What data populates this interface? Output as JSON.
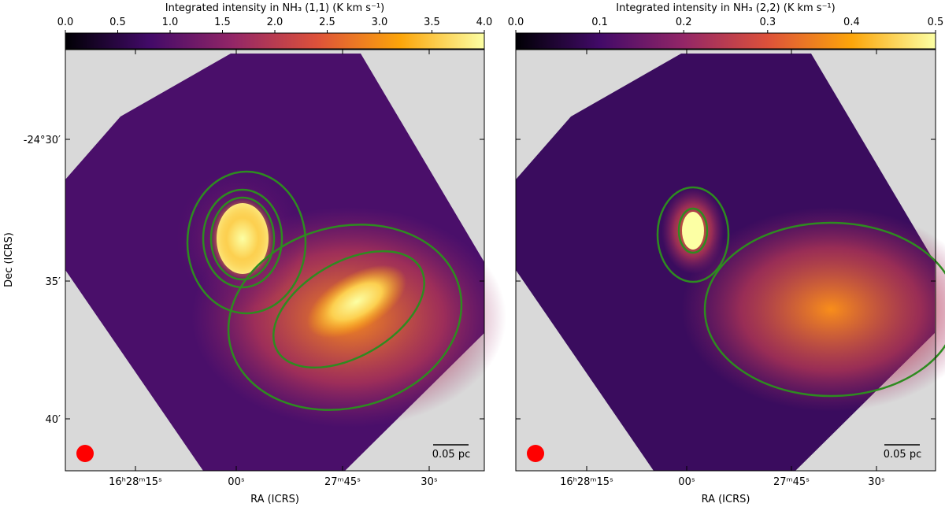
{
  "chart_data": [
    {
      "type": "heatmap",
      "colormap": "inferno",
      "colorbar_label": "Integrated intensity in NH₃ (1,1) (K km s⁻¹)",
      "clim": [
        0,
        4
      ],
      "cticks": [
        {
          "value": 0,
          "label": "0.0"
        },
        0.5,
        {
          "value": 1,
          "label": "1.0"
        },
        1.5,
        {
          "value": 2,
          "label": "2.0"
        },
        2.5,
        {
          "value": 3,
          "label": "3.0"
        },
        3.5,
        {
          "value": 4,
          "label": "4.0"
        }
      ],
      "xlabel": "RA (ICRS)",
      "ylabel": "Dec (ICRS)",
      "xtick_labels": [
        "16ʰ28ᵐ15ˢ",
        "00ˢ",
        "27ᵐ45ˢ",
        "30ˢ"
      ],
      "ytick_labels": [
        "-24°30′",
        "35′",
        "40′"
      ],
      "scalebar": "0.05 pc",
      "contour_color": "#2e8b20",
      "beam_color": "#ff0000"
    },
    {
      "type": "heatmap",
      "colormap": "inferno",
      "colorbar_label": "Integrated intensity in NH₃ (2,2) (K km s⁻¹)",
      "clim": [
        0,
        0.5
      ],
      "cticks": [
        {
          "value": 0,
          "label": "0.0"
        },
        0.1,
        0.2,
        0.3,
        0.4,
        0.5
      ],
      "xlabel": "RA (ICRS)",
      "xtick_labels": [
        "16ʰ28ᵐ15ˢ",
        "00ˢ",
        "27ᵐ45ˢ",
        "30ˢ"
      ],
      "scalebar": "0.05 pc",
      "contour_color": "#2e8b20",
      "beam_color": "#ff0000"
    }
  ]
}
